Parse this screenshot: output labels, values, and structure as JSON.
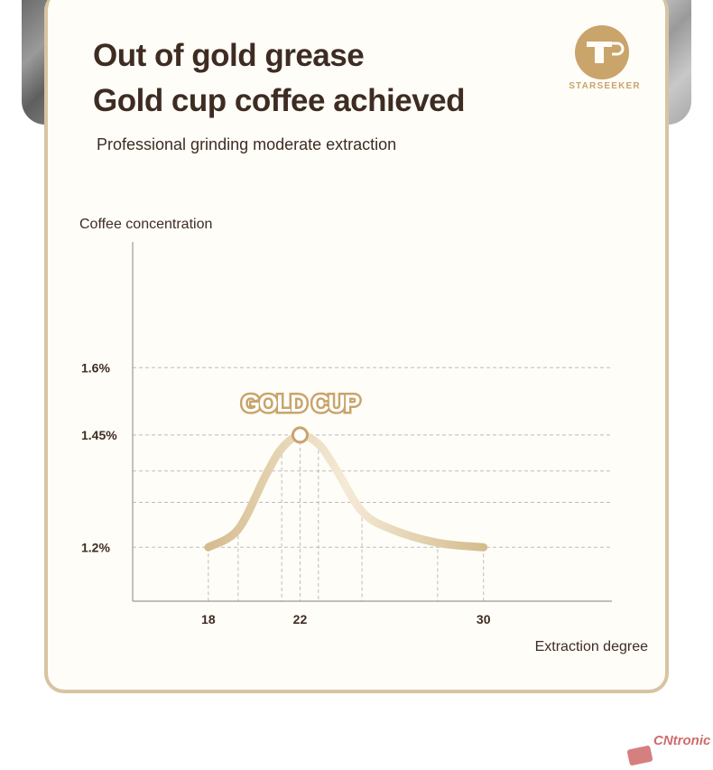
{
  "title_lines": [
    "Out of gold grease",
    "Gold cup coffee achieved"
  ],
  "subtitle": "Professional grinding moderate extraction",
  "brand": "STARSEEKER",
  "watermark": "CNtronic",
  "chart_data": {
    "type": "line",
    "title": "",
    "ylabel": "Coffee concentration",
    "xlabel": "Extraction degree",
    "x_ticks": [
      18,
      22,
      30
    ],
    "y_ticks": [
      {
        "value": 1.2,
        "label": "1.2%"
      },
      {
        "value": 1.45,
        "label": "1.45%"
      },
      {
        "value": 1.6,
        "label": "1.6%"
      }
    ],
    "xlim": [
      14.7,
      35.6
    ],
    "ylim": [
      1.08,
      1.88
    ],
    "grid": true,
    "series": [
      {
        "x": [
          18,
          19.3,
          20.5,
          21.2,
          22,
          22.8,
          23.5,
          24.7,
          26,
          28,
          30
        ],
        "y": [
          1.2,
          1.24,
          1.36,
          1.42,
          1.45,
          1.43,
          1.38,
          1.28,
          1.24,
          1.21,
          1.2
        ]
      }
    ],
    "peak": {
      "x": 22,
      "y": 1.45,
      "label": "GOLD CUP"
    },
    "colors": {
      "curve_start": "#d4bc8e",
      "curve_peak": "#f5ead6",
      "accent": "#c9a46b"
    }
  }
}
